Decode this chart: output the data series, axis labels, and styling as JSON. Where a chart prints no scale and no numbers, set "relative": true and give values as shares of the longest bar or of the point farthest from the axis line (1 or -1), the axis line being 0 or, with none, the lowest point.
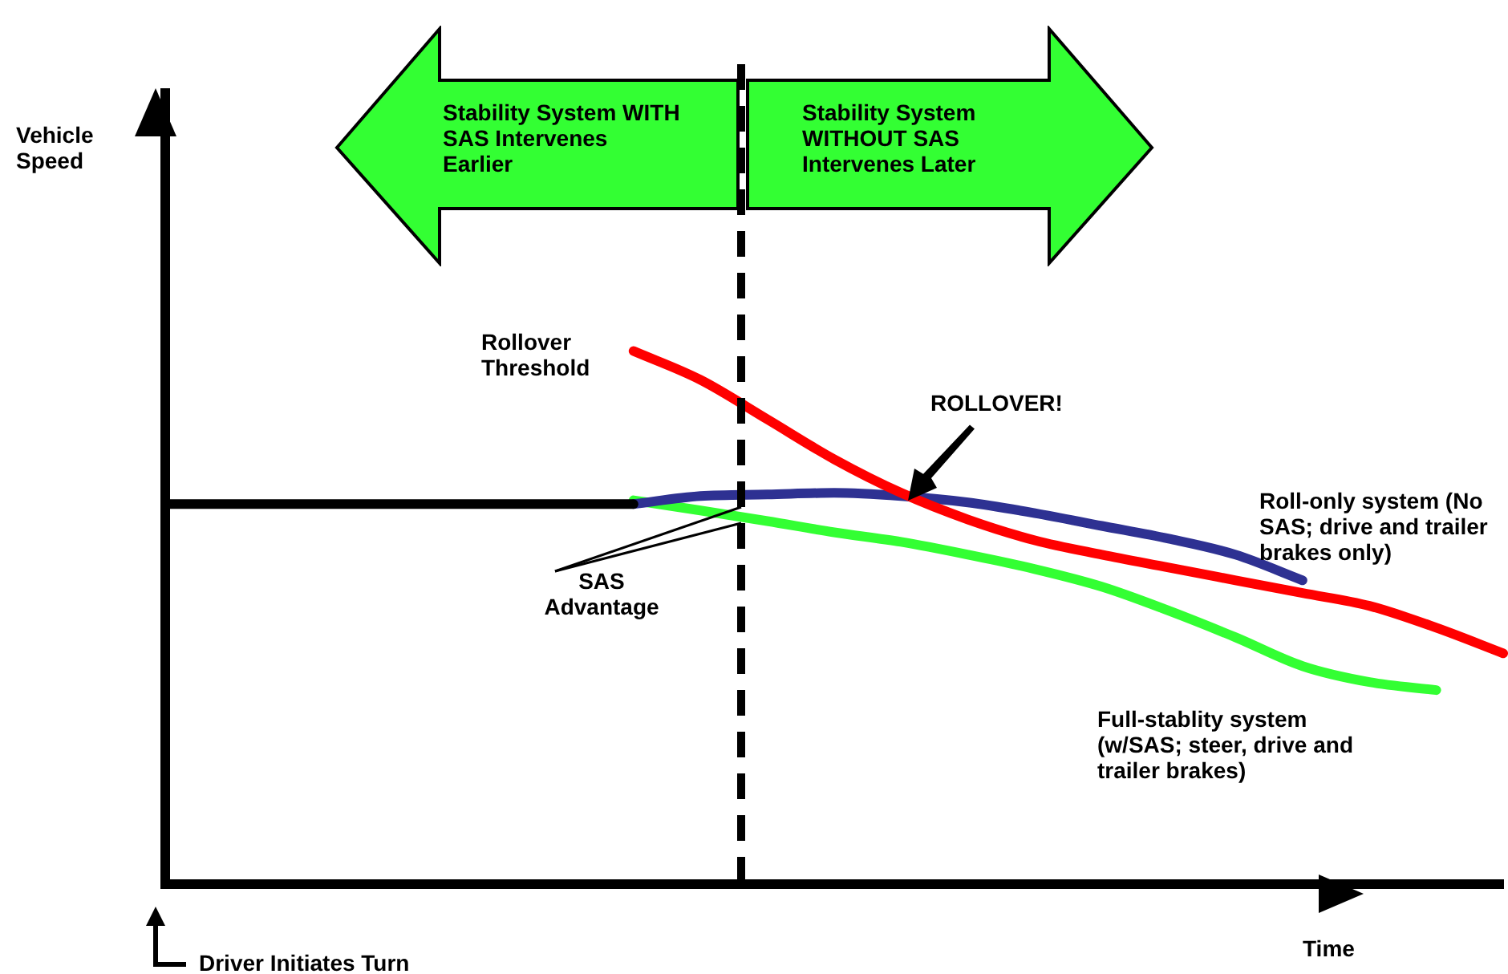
{
  "chart_data": {
    "type": "line",
    "relative": true,
    "xlabel": "Time",
    "categories": [
      null,
      null,
      null,
      null,
      null,
      null,
      null,
      null,
      null,
      null,
      null,
      null,
      null,
      null,
      null,
      null,
      null,
      null,
      null,
      null,
      null
    ],
    "series": [
      {
        "color": "#000000",
        "values": [
          0.713,
          0.713,
          0.713,
          0.713,
          0.713,
          0.713,
          0.713,
          0.713,
          null,
          null,
          null,
          null,
          null,
          null,
          null,
          null,
          null,
          null,
          null,
          null,
          null
        ]
      },
      {
        "name": "Rollover Threshold",
        "color": "#ff0000",
        "values": [
          null,
          null,
          null,
          null,
          null,
          null,
          null,
          1.0,
          0.946,
          0.872,
          0.797,
          0.734,
          0.684,
          0.645,
          0.618,
          0.594,
          0.57,
          0.546,
          0.522,
          0.481,
          0.433
        ]
      },
      {
        "name": "Roll-only system (No SAS; drive and trailer brakes only)",
        "color": "#2e3192",
        "values": [
          null,
          null,
          null,
          null,
          null,
          null,
          null,
          0.713,
          0.728,
          0.731,
          0.734,
          0.728,
          0.716,
          0.696,
          0.672,
          0.648,
          0.618,
          0.57,
          null,
          null,
          null
        ]
      },
      {
        "name": "Full-stablity system (w/SAS; steer, drive and trailer brakes)",
        "color": "#33ff33",
        "values": [
          null,
          null,
          null,
          null,
          null,
          null,
          null,
          0.72,
          0.701,
          0.681,
          0.66,
          0.642,
          0.618,
          0.591,
          0.558,
          0.513,
          0.463,
          0.409,
          0.379,
          0.364,
          null
        ]
      }
    ],
    "annotations": [
      "Stability System WITH SAS Intervenes Earlier",
      "Stability System WITHOUT SAS Intervenes Later",
      "ROLLOVER!",
      "SAS Advantage",
      "Driver Initiates Turn",
      "Vehicle Speed"
    ],
    "marker": "none",
    "legend": false,
    "grid": false
  }
}
